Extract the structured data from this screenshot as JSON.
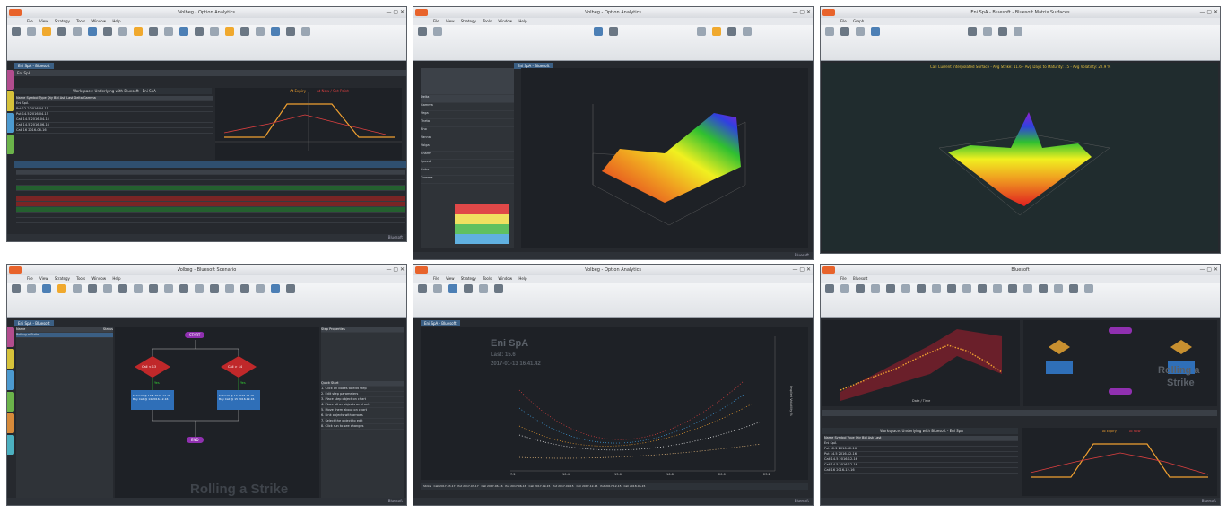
{
  "panels": [
    {
      "title": "Volbeg - Option Analytics",
      "menu": [
        "File",
        "View",
        "Strategy",
        "Tools",
        "Window",
        "Help"
      ],
      "doc_tab": "Eni SpA - Bluesoft",
      "table_title": "Workspace: Underlying with Bluesoft - Eni SpA",
      "legend": [
        "At Expiry",
        "At Now / Set Point"
      ],
      "status": "Bluesoft",
      "rows": [
        "Eni SpA",
        "Put 12.2 2016-04-15",
        "Put 14.5 2016-04-15",
        "Call 14.5 2016-04-15",
        "Call 14.5 2016-06-16",
        "Call 16 2016-06-16"
      ]
    },
    {
      "title": "Volbeg - Option Analytics",
      "menu": [
        "File",
        "View",
        "Strategy",
        "Tools",
        "Window",
        "Help"
      ],
      "doc_tab": "Eni SpA - Bluesoft",
      "greeks": [
        "Delta",
        "Gamma",
        "Vega",
        "Theta",
        "Rho",
        "Vanna",
        "Volga",
        "Charm",
        "Speed",
        "Color",
        "Zomma"
      ],
      "side_headers": [
        "Greeks",
        "Implied Vol",
        "Fair Value"
      ],
      "stat_label": "Relations",
      "status": "Bluesoft"
    },
    {
      "title": "Eni SpA - Bluesoft - Bluesoft Matrix Surfaces",
      "menu": [
        "File",
        "Graph"
      ],
      "header_text": "Call Current Interpolated Surface - Avg Strike: 11.6 - Avg Days to Maturity: 75 - Avg Volatility: 22.9 %"
    },
    {
      "title": "Volbeg - Bluesoft Scenario",
      "menu": [
        "File",
        "View",
        "Strategy",
        "Tools",
        "Window",
        "Help"
      ],
      "doc_tab": "Eni SpA - Bluesoft",
      "list_headers": [
        "Name",
        "Status"
      ],
      "list_items": [
        "Rolling a Strike"
      ],
      "flow": {
        "start": "START",
        "cond_left": "Call < 13",
        "cond_right": "Call > 14",
        "action_left": "Sell Call @ 13.5 2016-12-16\nBuy Call @ 14 2016-12-16",
        "action_right": "Sell Call @ 14 2016-12-16\nBuy Call @ 15 2016-12-16",
        "end": "END",
        "yes": "Yes"
      },
      "watermark": "Rolling a Strike",
      "props_title": "Step Properties",
      "quick_title": "Quick Start",
      "quick_steps": [
        "1. Click on boxes to edit step",
        "2. Edit step parameters",
        "3. Place step object on chart",
        "4. Place other objects on chart",
        "5. Move them about on chart",
        "6. Link objects with arrows",
        "7. Select the object to edit",
        "8. Click run to see changes"
      ],
      "status": "Bluesoft"
    },
    {
      "title": "Volbeg - Option Analytics",
      "menu": [
        "File",
        "View",
        "Strategy",
        "Tools",
        "Window",
        "Help"
      ],
      "doc_tab": "Eni SpA - Bluesoft",
      "chart_overlay": {
        "name": "Eni SpA",
        "last": "Last: 15.6",
        "time": "2017-01-13 16.41.42"
      },
      "y_axis_label": "Implied Volatility %",
      "x_ticks": [
        "7.2",
        "10.4",
        "13.6",
        "16.8",
        "20.0",
        "23.2"
      ],
      "footer_items": [
        "Strike",
        "Call 2017-03-17",
        "Put 2017-03-17",
        "Call 2017-06-16",
        "Put 2017-06-16",
        "Call 2017-09-15",
        "Put 2017-09-15",
        "Call 2017-12-15",
        "Put 2017-12-15",
        "Call 2018-06-15"
      ],
      "status": "Bluesoft"
    },
    {
      "title": "Bluesoft",
      "menu": [
        "File",
        "Bluesoft"
      ],
      "doc_tab": "Eni SpA - Bluesoft",
      "table_title": "Workspace: Underlying with Bluesoft - Eni SpA",
      "rows": [
        "Eni SpA",
        "Put 12.2 2016-12-16",
        "Put 14.5 2016-12-16",
        "Call 14.5 2016-12-16",
        "Call 14.5 2016-12-16",
        "Call 16 2016-12-16"
      ],
      "watermark_line1": "Rolling a",
      "watermark_line2": "Strike",
      "x_axis_label": "Date / Time",
      "legend": [
        "At Expiry",
        "At Now"
      ],
      "status": "Bluesoft"
    }
  ],
  "colors": {
    "accent": "#e8632b",
    "panel_bg": "#26292e",
    "ribbon": "#e2e5e9",
    "orange_line": "#f0a030",
    "red_line": "#e04040"
  }
}
